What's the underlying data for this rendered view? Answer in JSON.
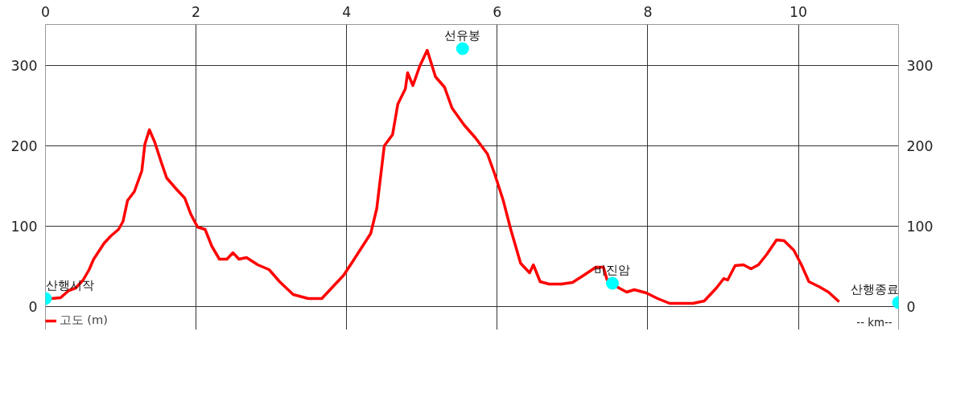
{
  "chart_data": {
    "type": "line",
    "xlabel": "-- km--",
    "xlim": [
      0,
      11.33
    ],
    "xticks": [
      0,
      2,
      4,
      6,
      8,
      10
    ],
    "ylim": [
      -29,
      351
    ],
    "yticks": [
      0,
      100,
      200,
      300
    ],
    "y2lim": [
      -29,
      351
    ],
    "y2ticks": [
      0,
      100,
      200,
      300
    ],
    "grid": true,
    "legend": "bottom left",
    "marker": "none",
    "line_style": "solid",
    "series": [
      {
        "name": "고도 (m)",
        "color": "#ff0000",
        "x": [
          0.08,
          0.2,
          0.31,
          0.4,
          0.5,
          0.58,
          0.64,
          0.71,
          0.78,
          0.87,
          0.97,
          1.03,
          1.09,
          1.18,
          1.28,
          1.32,
          1.38,
          1.45,
          1.54,
          1.61,
          1.74,
          1.85,
          1.93,
          2.02,
          2.12,
          2.21,
          2.31,
          2.41,
          2.49,
          2.57,
          2.67,
          2.82,
          2.97,
          3.11,
          3.29,
          3.49,
          3.67,
          3.8,
          3.96,
          4.08,
          4.21,
          4.32,
          4.4,
          4.5,
          4.61,
          4.68,
          4.78,
          4.81,
          4.88,
          4.97,
          5.07,
          5.18,
          5.3,
          5.4,
          5.56,
          5.71,
          5.87,
          5.97,
          6.08,
          6.18,
          6.31,
          6.43,
          6.48,
          6.57,
          6.69,
          6.85,
          7.0,
          7.15,
          7.31,
          7.41,
          7.46,
          7.62,
          7.72,
          7.82,
          7.98,
          8.13,
          8.29,
          8.6,
          8.75,
          8.91,
          9.01,
          9.06,
          9.16,
          9.27,
          9.37,
          9.47,
          9.58,
          9.71,
          9.81,
          9.94,
          10.04,
          10.14,
          10.27,
          10.4,
          10.54
        ],
        "values": [
          10,
          11,
          20,
          23,
          33,
          46,
          59,
          69,
          79,
          88,
          96,
          106,
          132,
          143,
          169,
          202,
          220,
          205,
          179,
          160,
          146,
          135,
          115,
          99,
          96,
          75,
          59,
          59,
          67,
          59,
          61,
          52,
          46,
          31,
          15,
          10,
          10,
          23,
          39,
          56,
          75,
          91,
          122,
          200,
          214,
          252,
          271,
          291,
          275,
          299,
          319,
          286,
          273,
          247,
          226,
          210,
          190,
          164,
          132,
          96,
          54,
          42,
          52,
          31,
          28,
          28,
          30,
          39,
          49,
          49,
          33,
          23,
          18,
          21,
          17,
          10,
          4,
          4,
          7,
          23,
          35,
          33,
          51,
          52,
          47,
          52,
          65,
          83,
          82,
          70,
          52,
          31,
          25,
          18,
          6
        ]
      },
      {
        "color": "#00ffff",
        "type": "scatter",
        "marker": "circle",
        "x": [
          0,
          5.54,
          7.53,
          11.33
        ],
        "values": [
          10,
          321,
          29,
          5
        ],
        "value_labels": [
          "산행시작",
          "선유봉",
          "비진암",
          "산행종료"
        ]
      }
    ]
  }
}
